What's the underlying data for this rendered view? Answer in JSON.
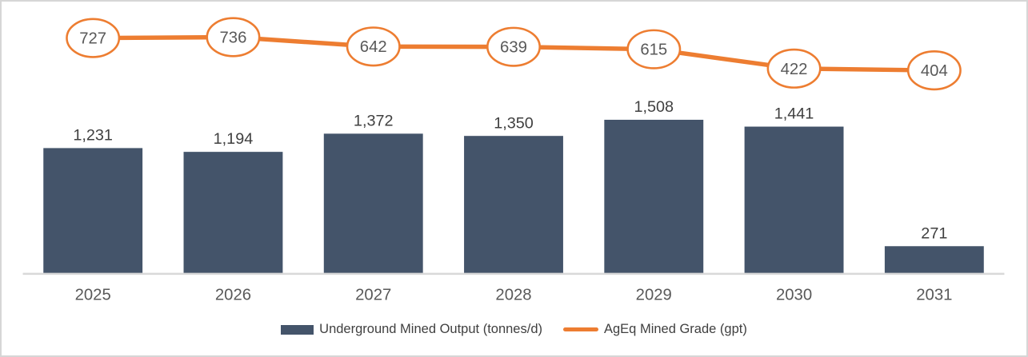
{
  "chart_data": {
    "type": "combo",
    "title": "",
    "categories": [
      "2025",
      "2026",
      "2027",
      "2028",
      "2029",
      "2030",
      "2031"
    ],
    "series": [
      {
        "name": "Underground Mined Output (tonnes/d)",
        "type": "bar",
        "values": [
          1231,
          1194,
          1372,
          1350,
          1508,
          1441,
          271
        ],
        "data_labels": [
          "1,231",
          "1,194",
          "1,372",
          "1,350",
          "1,508",
          "1,441",
          "271"
        ],
        "color": "#44546A"
      },
      {
        "name": "AgEq Mined Grade (gpt)",
        "type": "line",
        "values": [
          727,
          736,
          642,
          639,
          615,
          422,
          404
        ],
        "data_labels": [
          "727",
          "736",
          "642",
          "639",
          "615",
          "422",
          "404"
        ],
        "color": "#ED7D31",
        "marker": "outlined-ellipse"
      }
    ],
    "legend_position": "bottom",
    "grid": false,
    "axes": {
      "x": {
        "labels_visible": true
      },
      "y_left": {
        "visible": false
      },
      "y_right": {
        "visible": false
      }
    }
  },
  "colors": {
    "bar_fill": "#44546A",
    "line_stroke": "#ED7D31",
    "marker_fill": "#FFFFFF",
    "bar_label_text": "#404040",
    "marker_label_text": "#595959",
    "axis_label_text": "#595959",
    "axis_line": "#D9D9D9",
    "frame_border": "#D6D6D6",
    "background": "#FFFFFF"
  }
}
